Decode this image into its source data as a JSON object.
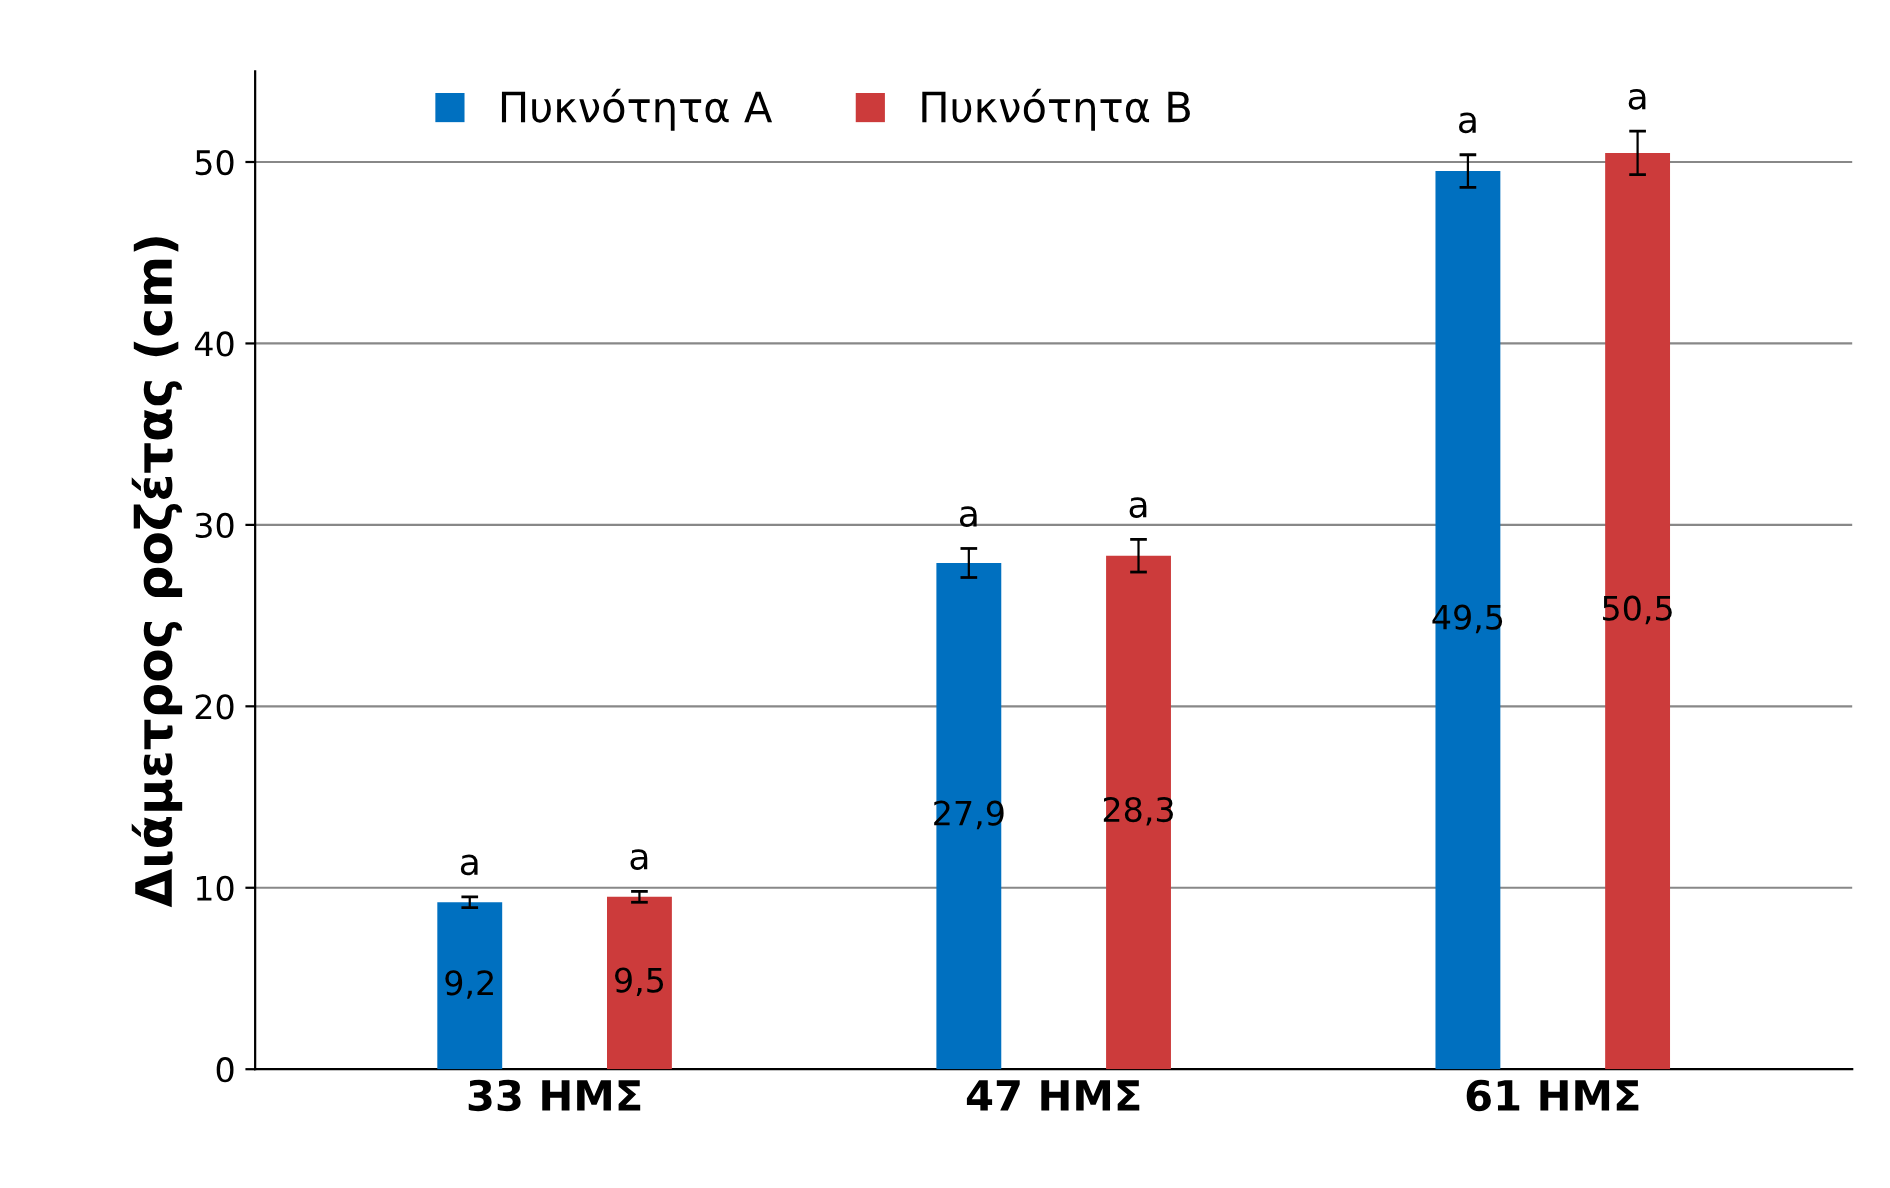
{
  "chart_data": {
    "type": "bar",
    "ylabel": "Διάμετρος ροζέτας (cm)",
    "categories": [
      "33 ΗΜΣ",
      "47 ΗΜΣ",
      "61 ΗΜΣ"
    ],
    "series": [
      {
        "name": "Πυκνότητα Α",
        "color": "#0070c0",
        "values": [
          9.2,
          27.9,
          49.5
        ],
        "errors": [
          0.3,
          0.8,
          0.9
        ],
        "value_labels": [
          "9,2",
          "27,9",
          "49,5"
        ]
      },
      {
        "name": "Πυκνότητα Β",
        "color": "#cc3b3b",
        "values": [
          9.5,
          28.3,
          50.5
        ],
        "errors": [
          0.3,
          0.9,
          1.2
        ],
        "value_labels": [
          "9,5",
          "28,3",
          "50,5"
        ]
      }
    ],
    "annotations": [
      "a",
      "a",
      "a",
      "a",
      "a",
      "a"
    ],
    "ylim": [
      0,
      55
    ],
    "yticks": [
      0,
      10,
      20,
      30,
      40,
      50
    ],
    "grid": "y",
    "legend": "top"
  }
}
